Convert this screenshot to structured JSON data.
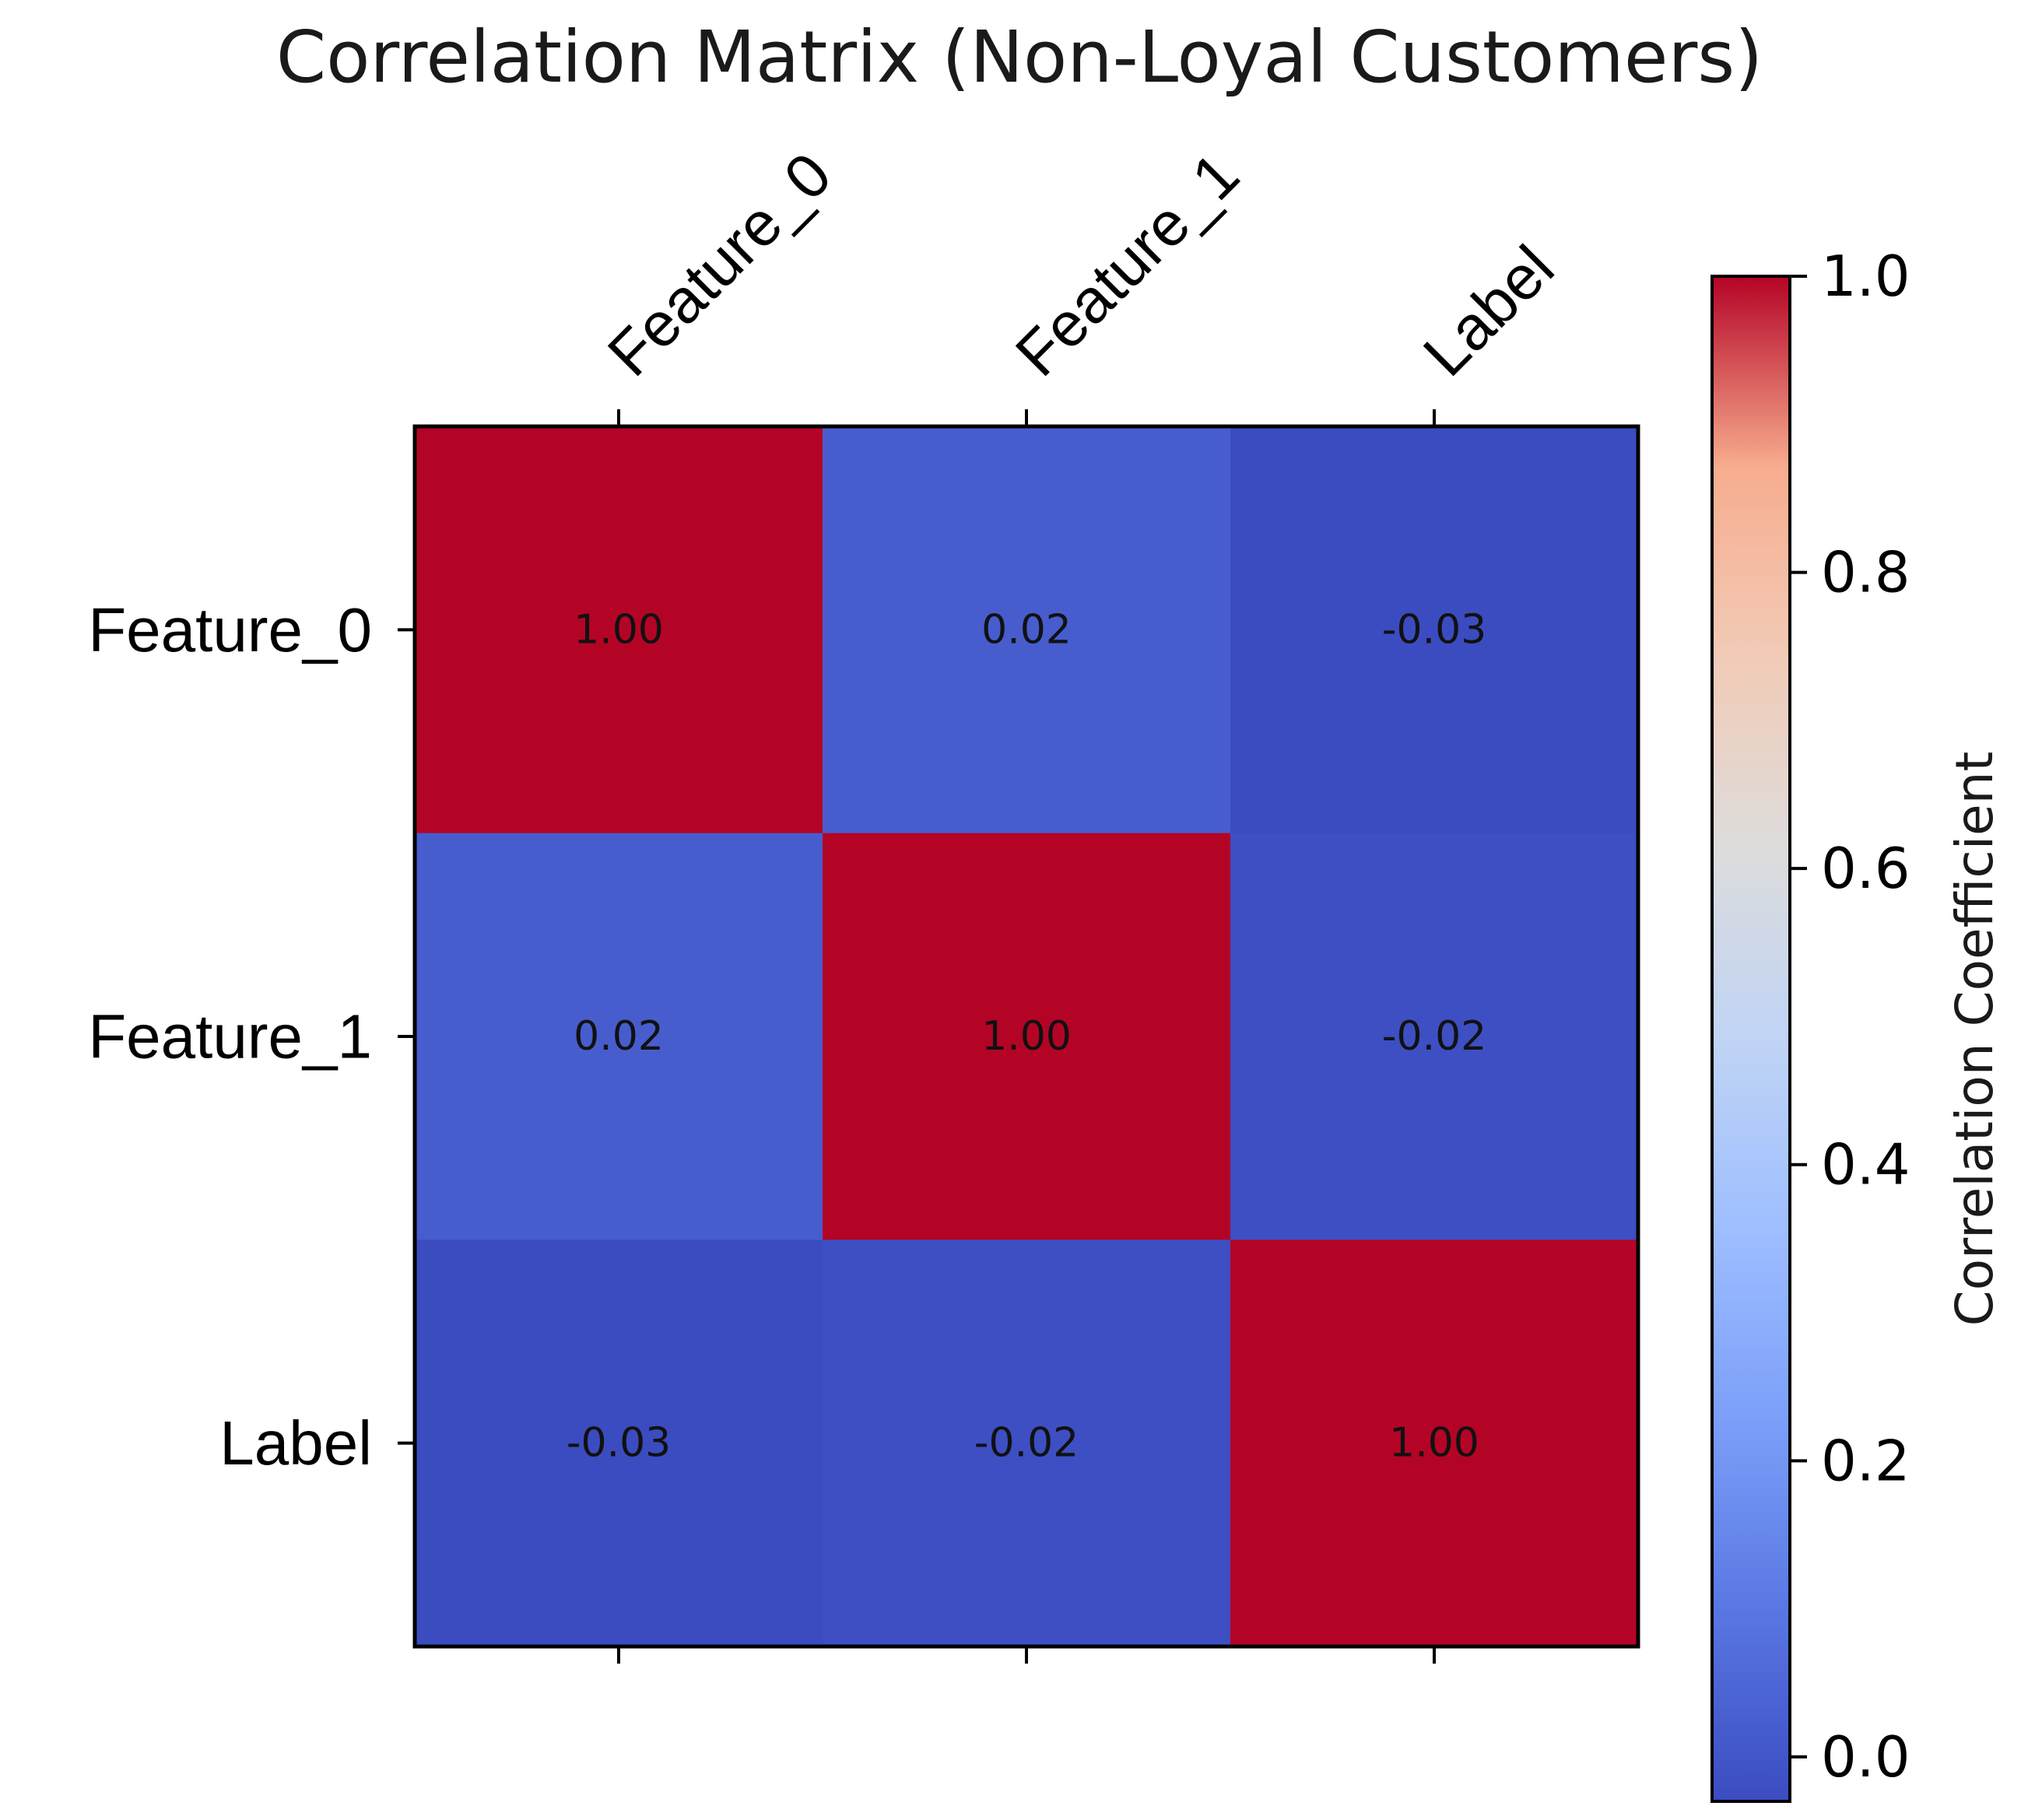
{
  "chart_data": {
    "type": "heatmap",
    "title": "Correlation Matrix (Non-Loyal Customers)",
    "x_categories": [
      "Feature_0",
      "Feature_1",
      "Label"
    ],
    "y_categories": [
      "Feature_0",
      "Feature_1",
      "Label"
    ],
    "values": [
      [
        1.0,
        0.02,
        -0.03
      ],
      [
        0.02,
        1.0,
        -0.02
      ],
      [
        -0.03,
        -0.02,
        1.0
      ]
    ],
    "cell_labels": [
      [
        "1.00",
        "0.02",
        "-0.03"
      ],
      [
        "0.02",
        "1.00",
        "-0.02"
      ],
      [
        "-0.03",
        "-0.02",
        "1.00"
      ]
    ],
    "x_axis_position": "top",
    "colormap": "coolwarm",
    "colorbar": {
      "label": "Correlation Coefficient",
      "range": [
        -0.03,
        1.0
      ],
      "ticks": [
        0.0,
        0.2,
        0.4,
        0.6,
        0.8,
        1.0
      ],
      "tick_labels": [
        "0.0",
        "0.2",
        "0.4",
        "0.6",
        "0.8",
        "1.0"
      ]
    },
    "grid": false
  }
}
